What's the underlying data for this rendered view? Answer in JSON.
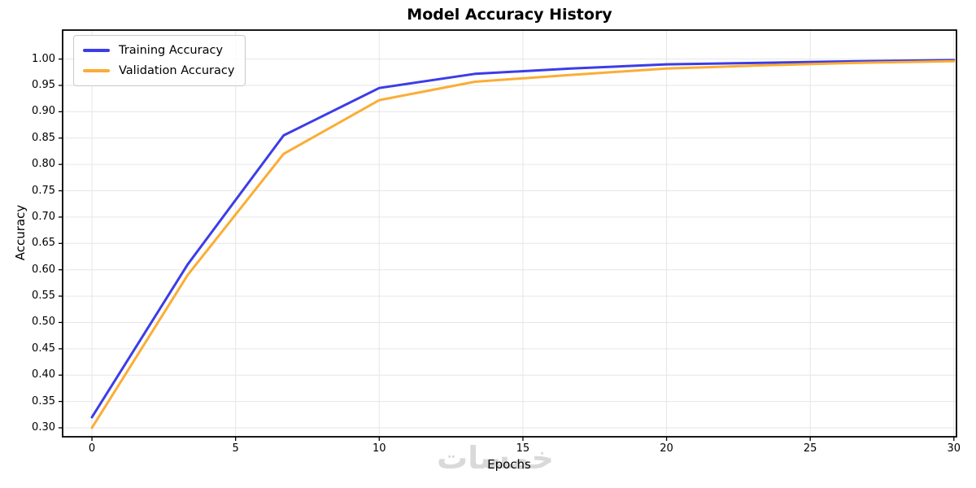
{
  "watermark": {
    "text": "خمسات"
  },
  "chart_data": {
    "type": "line",
    "title": "Model Accuracy History",
    "xlabel": "Epochs",
    "ylabel": "Accuracy",
    "x": [
      0,
      3.33,
      6.67,
      10,
      13.33,
      16.67,
      20,
      23.33,
      26.67,
      30
    ],
    "series": [
      {
        "name": "Training Accuracy",
        "color": "#3c3ce8",
        "values": [
          0.32,
          0.61,
          0.855,
          0.945,
          0.972,
          0.982,
          0.99,
          0.993,
          0.996,
          0.998
        ]
      },
      {
        "name": "Validation Accuracy",
        "color": "#fbad35",
        "values": [
          0.3,
          0.59,
          0.82,
          0.922,
          0.957,
          0.97,
          0.982,
          0.988,
          0.993,
          0.996
        ]
      }
    ],
    "x_ticks": [
      0,
      5,
      10,
      15,
      20,
      25,
      30
    ],
    "y_ticks": [
      "0.30",
      "0.35",
      "0.40",
      "0.45",
      "0.50",
      "0.55",
      "0.60",
      "0.65",
      "0.70",
      "0.75",
      "0.80",
      "0.85",
      "0.90",
      "0.95",
      "1.00"
    ],
    "xlim": [
      -1.02,
      30.09
    ],
    "ylim": [
      0.283,
      1.055
    ],
    "grid": true,
    "legend_position": "upper left",
    "line_width": 3,
    "colors": {
      "grid": "#e6e6e6",
      "spine": "#000000",
      "tick_text": "#000000",
      "watermark": "#d9d9d9",
      "background": "#ffffff"
    }
  }
}
